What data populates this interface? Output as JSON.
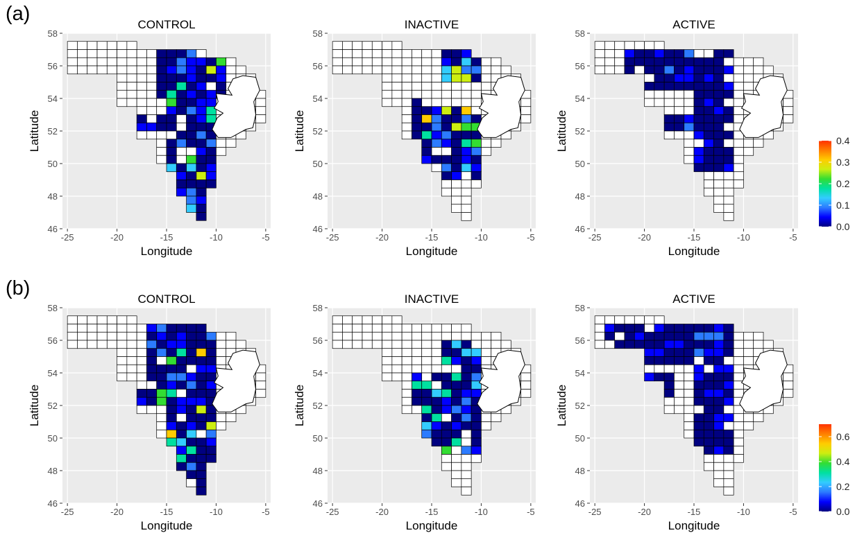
{
  "rows": [
    {
      "label": "(a)",
      "legend": {
        "ticks": [
          "0.0",
          "0.1",
          "0.2",
          "0.3",
          "0.4"
        ],
        "max": 0.4
      },
      "panels": [
        {
          "title": "CONTROL",
          "xlabel": "Longitude",
          "ylabel": "Latitude"
        },
        {
          "title": "INACTIVE",
          "xlabel": "Longitude",
          "ylabel": "Latitude"
        },
        {
          "title": "ACTIVE",
          "xlabel": "Longitude",
          "ylabel": "Latitude"
        }
      ]
    },
    {
      "label": "(b)",
      "legend": {
        "ticks": [
          "0.0",
          "0.2",
          "0.4",
          "0.6"
        ],
        "max": 0.7
      },
      "panels": [
        {
          "title": "CONTROL",
          "xlabel": "Longitude",
          "ylabel": "Latitude"
        },
        {
          "title": "INACTIVE",
          "xlabel": "Longitude",
          "ylabel": "Latitude"
        },
        {
          "title": "ACTIVE",
          "xlabel": "Longitude",
          "ylabel": "Latitude"
        }
      ]
    }
  ],
  "axes": {
    "xticks": [
      "-25",
      "-20",
      "-15",
      "-10",
      "-5"
    ],
    "yticks": [
      "46",
      "48",
      "50",
      "52",
      "54",
      "56",
      "58"
    ],
    "xlim": [
      -25.5,
      -4.5
    ],
    "ylim": [
      46,
      58
    ]
  },
  "colorscale": [
    "#000080",
    "#0000ff",
    "#2c7bff",
    "#33ccff",
    "#00e0a0",
    "#33dd33",
    "#ccee11",
    "#ffcc00",
    "#ff7f00",
    "#ff3300"
  ],
  "grid_color": "#ebebeb",
  "panel_bg": "#ebebeb"
}
